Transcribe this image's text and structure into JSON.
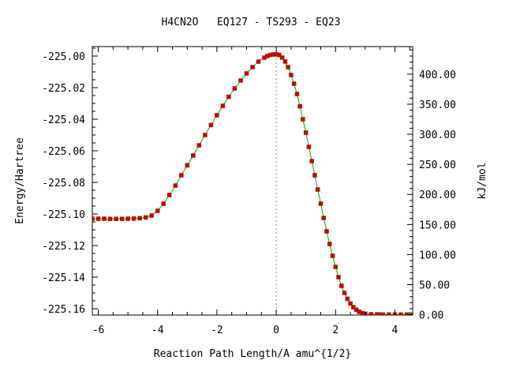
{
  "chart_data": {
    "type": "line",
    "title": "H4CN2O   EQ127 - TS293 - EQ23",
    "xlabel": "Reaction Path Length/A amu^{1/2}",
    "ylabel": "Energy/Hartree",
    "y2label": "kJ/mol",
    "xlim": [
      -6.2,
      4.6
    ],
    "ylim": [
      -225.164,
      -224.994
    ],
    "y2lim": [
      -0.53,
      445.79
    ],
    "grid": false,
    "legend": "none",
    "xticks": [
      -6,
      -4,
      -2,
      0,
      2,
      4
    ],
    "xtick_labels": [
      "-6",
      "-4",
      "-2",
      "0",
      "2",
      "4"
    ],
    "yticks": [
      -225.0,
      -225.02,
      -225.04,
      -225.06,
      -225.08,
      -225.1,
      -225.12,
      -225.14,
      -225.16
    ],
    "ytick_labels": [
      "-225.00",
      "-225.02",
      "-225.04",
      "-225.06",
      "-225.08",
      "-225.10",
      "-225.12",
      "-225.14",
      "-225.16"
    ],
    "y2ticks": [
      0,
      50,
      100,
      150,
      200,
      250,
      300,
      350,
      400
    ],
    "y2tick_labels": [
      "0.00",
      "50.00",
      "100.00",
      "150.00",
      "200.00",
      "250.00",
      "300.00",
      "350.00",
      "400.00"
    ],
    "ts_x": 0,
    "colors": {
      "line": "#00aa00",
      "marker": "#cc0000",
      "marker_edge": "#993300",
      "ts_line": "#888888"
    },
    "series": [
      {
        "x": [
          -6.2,
          -6.0,
          -5.8,
          -5.6,
          -5.4,
          -5.2,
          -5.0,
          -4.8,
          -4.6,
          -4.4,
          -4.2,
          -4.0,
          -3.8,
          -3.6,
          -3.4,
          -3.2,
          -3.0,
          -2.8,
          -2.6,
          -2.4,
          -2.2,
          -2.0,
          -1.8,
          -1.6,
          -1.4,
          -1.2,
          -1.0,
          -0.8,
          -0.6,
          -0.4,
          -0.3,
          -0.2,
          -0.1,
          0.0,
          0.1,
          0.2,
          0.3,
          0.4,
          0.5,
          0.6,
          0.7,
          0.8,
          0.9,
          1.0,
          1.1,
          1.2,
          1.3,
          1.4,
          1.5,
          1.6,
          1.7,
          1.8,
          1.9,
          2.0,
          2.1,
          2.2,
          2.3,
          2.4,
          2.5,
          2.6,
          2.7,
          2.8,
          2.9,
          3.0,
          3.2,
          3.4,
          3.6,
          3.8,
          4.0,
          4.2,
          4.4,
          4.6
        ],
        "y": [
          -225.103,
          -225.103,
          -225.103,
          -225.1031,
          -225.1031,
          -225.1031,
          -225.103,
          -225.1029,
          -225.1027,
          -225.1022,
          -225.101,
          -225.098,
          -225.0935,
          -225.088,
          -225.082,
          -225.0755,
          -225.0692,
          -225.063,
          -225.0565,
          -225.05,
          -225.0437,
          -225.0375,
          -225.0315,
          -225.0258,
          -225.0205,
          -225.0155,
          -225.011,
          -225.007,
          -225.0035,
          -225.001,
          -225.0,
          -224.9993,
          -224.999,
          -224.9989,
          -224.9993,
          -225.001,
          -225.0035,
          -225.007,
          -225.012,
          -225.0175,
          -225.024,
          -225.0318,
          -225.04,
          -225.0485,
          -225.0575,
          -225.0665,
          -225.0755,
          -225.0845,
          -225.0935,
          -225.1025,
          -225.111,
          -225.119,
          -225.1265,
          -225.1335,
          -225.14,
          -225.1455,
          -225.15,
          -225.1537,
          -225.1567,
          -225.159,
          -225.1607,
          -225.162,
          -225.1628,
          -225.1632,
          -225.1635,
          -225.1636,
          -225.1637,
          -225.1637,
          -225.1637,
          -225.1637,
          -225.1637,
          -225.1637
        ]
      }
    ]
  }
}
